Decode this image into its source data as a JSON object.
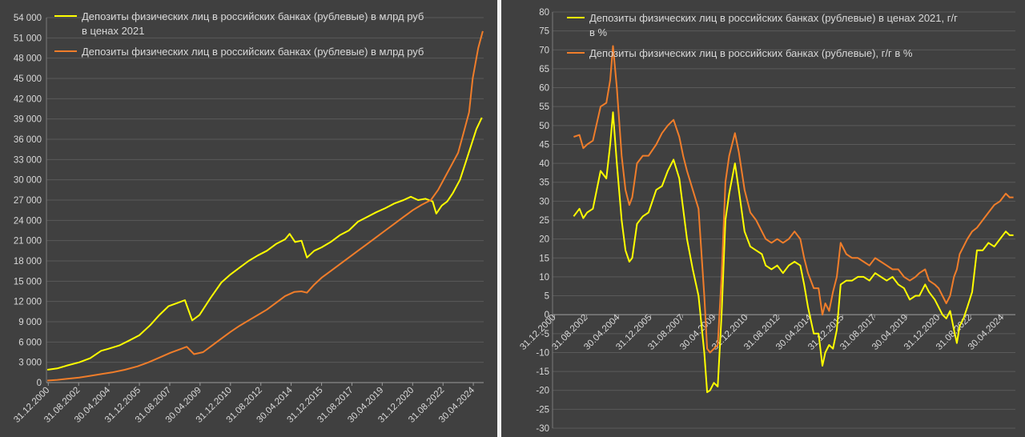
{
  "chart_data": [
    {
      "type": "line",
      "title": "",
      "xlabel": "",
      "ylabel": "",
      "ylim": [
        0,
        54000
      ],
      "y_ticks": [
        "0",
        "3 000",
        "6 000",
        "9 000",
        "12 000",
        "15 000",
        "18 000",
        "21 000",
        "24 000",
        "27 000",
        "30 000",
        "33 000",
        "36 000",
        "39 000",
        "42 000",
        "45 000",
        "48 000",
        "51 000",
        "54 000"
      ],
      "x_ticks": [
        "31.12.2000",
        "31.08.2002",
        "30.04.2004",
        "31.12.2005",
        "31.08.2007",
        "30.04.2009",
        "31.12.2010",
        "31.08.2012",
        "30.04.2014",
        "31.12.2015",
        "31.08.2017",
        "30.04.2019",
        "31.12.2020",
        "31.08.2022",
        "30.04.2024"
      ],
      "x_range_years": [
        2000.9,
        2024.9
      ],
      "grid": true,
      "legend_position": "top-left",
      "series": [
        {
          "name": "Депозиты физических лиц в российских банках (рублевые) в млрд руб в ценах 2021",
          "legend_lines": [
            "Депозиты физических лиц в российских банках (рублевые) в млрд руб",
            "в ценах 2021"
          ],
          "color": "#ffff00",
          "x": [
            2000.95,
            2001.5,
            2002.0,
            2002.7,
            2003.3,
            2003.9,
            2004.3,
            2004.9,
            2005.5,
            2006.0,
            2006.6,
            2007.1,
            2007.6,
            2008.1,
            2008.5,
            2008.9,
            2009.3,
            2009.9,
            2010.5,
            2011.0,
            2011.5,
            2012.0,
            2012.5,
            2013.0,
            2013.5,
            2014.0,
            2014.25,
            2014.55,
            2014.9,
            2015.2,
            2015.6,
            2016.0,
            2016.5,
            2017.0,
            2017.5,
            2018.0,
            2018.5,
            2019.0,
            2019.5,
            2020.0,
            2020.5,
            2020.9,
            2021.3,
            2021.7,
            2022.1,
            2022.3,
            2022.6,
            2022.9,
            2023.2,
            2023.6,
            2023.9,
            2024.2,
            2024.5,
            2024.8
          ],
          "values": [
            1900,
            2100,
            2500,
            3000,
            3600,
            4700,
            5000,
            5500,
            6300,
            7000,
            8500,
            10000,
            11300,
            11800,
            12200,
            9200,
            10000,
            12500,
            14800,
            16000,
            17000,
            18000,
            18800,
            19500,
            20500,
            21200,
            22000,
            20800,
            21000,
            18500,
            19500,
            20000,
            20800,
            21800,
            22500,
            23800,
            24500,
            25200,
            25800,
            26500,
            27000,
            27500,
            27000,
            27200,
            26800,
            25000,
            26200,
            26800,
            28000,
            30000,
            32500,
            35000,
            37500,
            39200
          ]
        },
        {
          "name": "Депозиты физических лиц в российских банках (рублевые) в млрд руб",
          "legend_lines": [
            "Депозиты физических лиц в российских банках (рублевые) в млрд руб"
          ],
          "color": "#f07d2a",
          "x": [
            2000.95,
            2001.5,
            2002.0,
            2002.7,
            2003.3,
            2003.9,
            2004.5,
            2005.2,
            2005.9,
            2006.5,
            2007.1,
            2007.7,
            2008.3,
            2008.6,
            2009.0,
            2009.5,
            2010.0,
            2010.5,
            2011.0,
            2011.5,
            2012.0,
            2012.5,
            2013.0,
            2013.5,
            2014.0,
            2014.5,
            2014.9,
            2015.2,
            2015.6,
            2016.0,
            2016.5,
            2017.0,
            2017.5,
            2018.0,
            2018.5,
            2019.0,
            2019.5,
            2020.0,
            2020.5,
            2021.0,
            2021.5,
            2022.0,
            2022.4,
            2022.8,
            2023.1,
            2023.5,
            2023.8,
            2024.1,
            2024.3,
            2024.6,
            2024.85
          ],
          "values": [
            300,
            400,
            550,
            750,
            1000,
            1250,
            1500,
            1900,
            2400,
            3000,
            3700,
            4400,
            5000,
            5300,
            4200,
            4500,
            5500,
            6500,
            7500,
            8400,
            9200,
            10000,
            10800,
            11800,
            12800,
            13400,
            13500,
            13300,
            14500,
            15500,
            16500,
            17500,
            18500,
            19500,
            20500,
            21500,
            22500,
            23500,
            24500,
            25500,
            26300,
            27000,
            28500,
            30500,
            32000,
            34000,
            37000,
            40000,
            45000,
            49500,
            52000
          ]
        }
      ]
    },
    {
      "type": "line",
      "title": "",
      "xlabel": "",
      "ylabel": "",
      "ylim": [
        -30,
        80
      ],
      "y_ticks": [
        "-30",
        "-25",
        "-20",
        "-15",
        "-10",
        "-5",
        "0",
        "5",
        "10",
        "15",
        "20",
        "25",
        "30",
        "35",
        "40",
        "45",
        "50",
        "55",
        "60",
        "65",
        "70",
        "75",
        "80"
      ],
      "x_ticks": [
        "31.12.2000",
        "31.08.2002",
        "30.04.2004",
        "31.12.2005",
        "31.08.2007",
        "30.04.2009",
        "31.12.2010",
        "31.08.2012",
        "30.04.2014",
        "31.12.2015",
        "31.08.2017",
        "30.04.2019",
        "31.12.2020",
        "31.08.2022",
        "30.04.2024"
      ],
      "x_range_years": [
        2000.9,
        2025.0
      ],
      "grid": true,
      "legend_position": "top-left",
      "series": [
        {
          "name": "Депозиты физических лиц в российских банках (рублевые) в ценах 2021, г/г в %",
          "legend_lines": [
            "Депозиты физических лиц в российских банках (рублевые) в ценах 2021, г/г",
            "в %"
          ],
          "color": "#ffff00",
          "x": [
            2002.0,
            2002.3,
            2002.5,
            2002.7,
            2003.0,
            2003.4,
            2003.7,
            2003.9,
            2004.05,
            2004.25,
            2004.5,
            2004.7,
            2004.9,
            2005.05,
            2005.3,
            2005.6,
            2005.9,
            2006.3,
            2006.6,
            2006.9,
            2007.2,
            2007.5,
            2007.7,
            2007.9,
            2008.2,
            2008.5,
            2008.8,
            2008.95,
            2009.1,
            2009.3,
            2009.5,
            2009.7,
            2009.9,
            2010.1,
            2010.4,
            2010.6,
            2010.9,
            2011.2,
            2011.5,
            2011.8,
            2012.0,
            2012.3,
            2012.6,
            2012.9,
            2013.2,
            2013.5,
            2013.8,
            2014.0,
            2014.2,
            2014.5,
            2014.75,
            2014.95,
            2015.1,
            2015.3,
            2015.5,
            2015.7,
            2015.9,
            2016.2,
            2016.5,
            2016.8,
            2017.1,
            2017.4,
            2017.7,
            2018.0,
            2018.3,
            2018.6,
            2018.9,
            2019.2,
            2019.5,
            2019.8,
            2020.0,
            2020.3,
            2020.5,
            2020.8,
            2021.0,
            2021.2,
            2021.4,
            2021.6,
            2021.8,
            2021.95,
            2022.1,
            2022.3,
            2022.5,
            2022.75,
            2023.0,
            2023.3,
            2023.6,
            2023.9,
            2024.2,
            2024.5,
            2024.7,
            2024.9
          ],
          "values": [
            26,
            28,
            25.5,
            27,
            28,
            38,
            36,
            45,
            53.5,
            40,
            25,
            17,
            14,
            15,
            24,
            26,
            27,
            33,
            34,
            38,
            41,
            36,
            28,
            20,
            12,
            5,
            -10,
            -20.5,
            -20,
            -18,
            -19,
            0,
            25,
            32,
            40,
            33,
            22,
            18,
            17,
            16,
            13,
            12,
            13,
            11,
            13,
            14,
            13,
            8,
            2,
            -5,
            -5,
            -13.5,
            -10,
            -8,
            -9,
            -4,
            8,
            9,
            9,
            10,
            10,
            9,
            11,
            10,
            9,
            10,
            8,
            7,
            4,
            5,
            5,
            8,
            6,
            4,
            2,
            0,
            -1,
            1,
            -4,
            -7.5,
            -3,
            -1,
            2,
            6,
            17,
            17,
            19,
            18,
            20,
            22,
            21,
            21
          ]
        },
        {
          "name": "Депозиты физических лиц в российских банках (рублевые), г/г в %",
          "legend_lines": [
            "Депозиты физических лиц в российских банках (рублевые), г/г в %"
          ],
          "color": "#f07d2a",
          "x": [
            2002.0,
            2002.3,
            2002.5,
            2002.7,
            2003.0,
            2003.4,
            2003.7,
            2003.9,
            2004.05,
            2004.25,
            2004.5,
            2004.7,
            2004.9,
            2005.05,
            2005.3,
            2005.6,
            2005.9,
            2006.3,
            2006.6,
            2006.9,
            2007.2,
            2007.5,
            2007.7,
            2007.9,
            2008.2,
            2008.5,
            2008.8,
            2008.95,
            2009.1,
            2009.3,
            2009.5,
            2009.7,
            2009.9,
            2010.1,
            2010.4,
            2010.6,
            2010.9,
            2011.2,
            2011.5,
            2011.8,
            2012.0,
            2012.3,
            2012.6,
            2012.9,
            2013.2,
            2013.5,
            2013.8,
            2014.0,
            2014.2,
            2014.5,
            2014.75,
            2014.95,
            2015.1,
            2015.3,
            2015.5,
            2015.7,
            2015.9,
            2016.2,
            2016.5,
            2016.8,
            2017.1,
            2017.4,
            2017.7,
            2018.0,
            2018.3,
            2018.6,
            2018.9,
            2019.2,
            2019.5,
            2019.8,
            2020.0,
            2020.3,
            2020.5,
            2020.8,
            2021.0,
            2021.2,
            2021.4,
            2021.6,
            2021.8,
            2021.95,
            2022.1,
            2022.3,
            2022.5,
            2022.75,
            2023.0,
            2023.3,
            2023.6,
            2023.9,
            2024.2,
            2024.5,
            2024.7,
            2024.9
          ],
          "values": [
            47,
            47.5,
            44,
            45,
            46,
            55,
            56,
            62,
            71,
            60,
            42,
            33,
            29,
            31,
            40,
            42,
            42,
            45,
            48,
            50,
            51.5,
            47,
            42,
            38,
            33,
            28,
            5,
            -9,
            -10,
            -9,
            -8,
            10,
            35,
            42,
            48,
            43,
            33,
            27,
            25,
            22,
            20,
            19,
            20,
            19,
            20,
            22,
            20,
            15,
            11,
            7,
            7,
            0,
            3,
            1,
            6,
            10,
            19,
            16,
            15,
            15,
            14,
            13,
            15,
            14,
            13,
            12,
            12,
            10,
            9,
            10,
            11,
            12,
            9,
            8,
            7,
            5,
            3,
            5,
            10,
            12,
            16,
            18,
            20,
            22,
            23,
            25,
            27,
            29,
            30,
            32,
            31,
            31
          ]
        }
      ]
    }
  ]
}
